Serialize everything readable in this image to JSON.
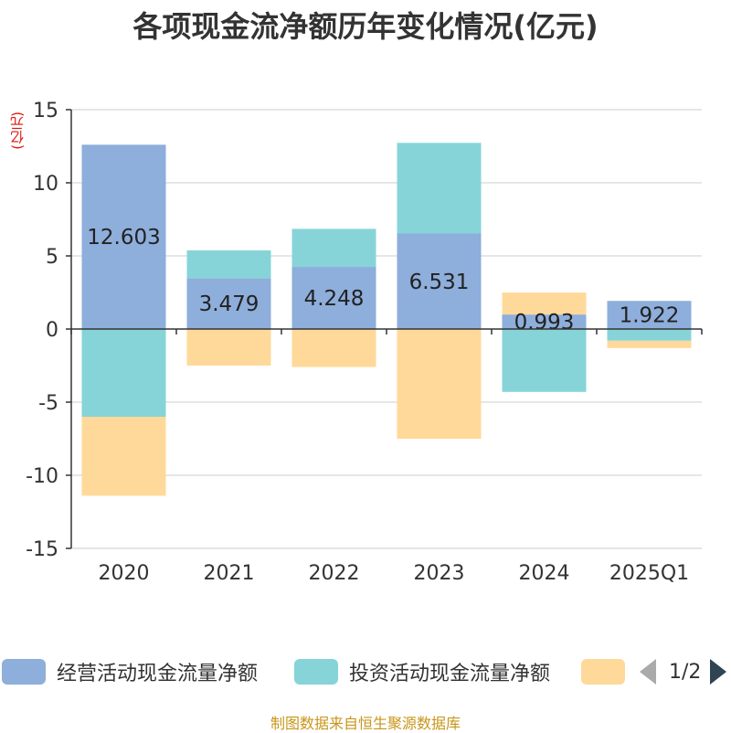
{
  "title": "各项现金流净额历年变化情况(亿元)",
  "unit_label": "(亿元)",
  "source": "制图数据来自恒生聚源数据库",
  "legend": {
    "items": [
      {
        "label": "经营活动现金流量净额",
        "color": "#8eaedb"
      },
      {
        "label": "投资活动现金流量净额",
        "color": "#86d4d8"
      },
      {
        "label": "",
        "color": "#ffd99a"
      }
    ],
    "page": "1/2"
  },
  "chart_data": {
    "type": "bar",
    "stacked": true,
    "categories": [
      "2020",
      "2021",
      "2022",
      "2023",
      "2024",
      "2025Q1"
    ],
    "ylim": [
      -15,
      15
    ],
    "yticks": [
      15,
      10,
      5,
      0,
      -5,
      -10,
      -15
    ],
    "grid": true,
    "legend_position": "bottom",
    "series": [
      {
        "name": "经营活动现金流量净额",
        "color": "#8eaedb",
        "values": [
          12.603,
          3.479,
          4.248,
          6.531,
          0.993,
          1.922
        ],
        "labels": [
          "12.603",
          "3.479",
          "4.248",
          "6.531",
          "0.993",
          "1.922"
        ]
      },
      {
        "name": "投资活动现金流量净额",
        "color": "#86d4d8",
        "values": [
          -6.0,
          1.9,
          2.6,
          6.2,
          -4.3,
          -0.8
        ]
      },
      {
        "color": "#ffd99a",
        "values": [
          -5.4,
          -2.5,
          -2.6,
          -7.5,
          1.5,
          -0.5
        ]
      }
    ]
  }
}
